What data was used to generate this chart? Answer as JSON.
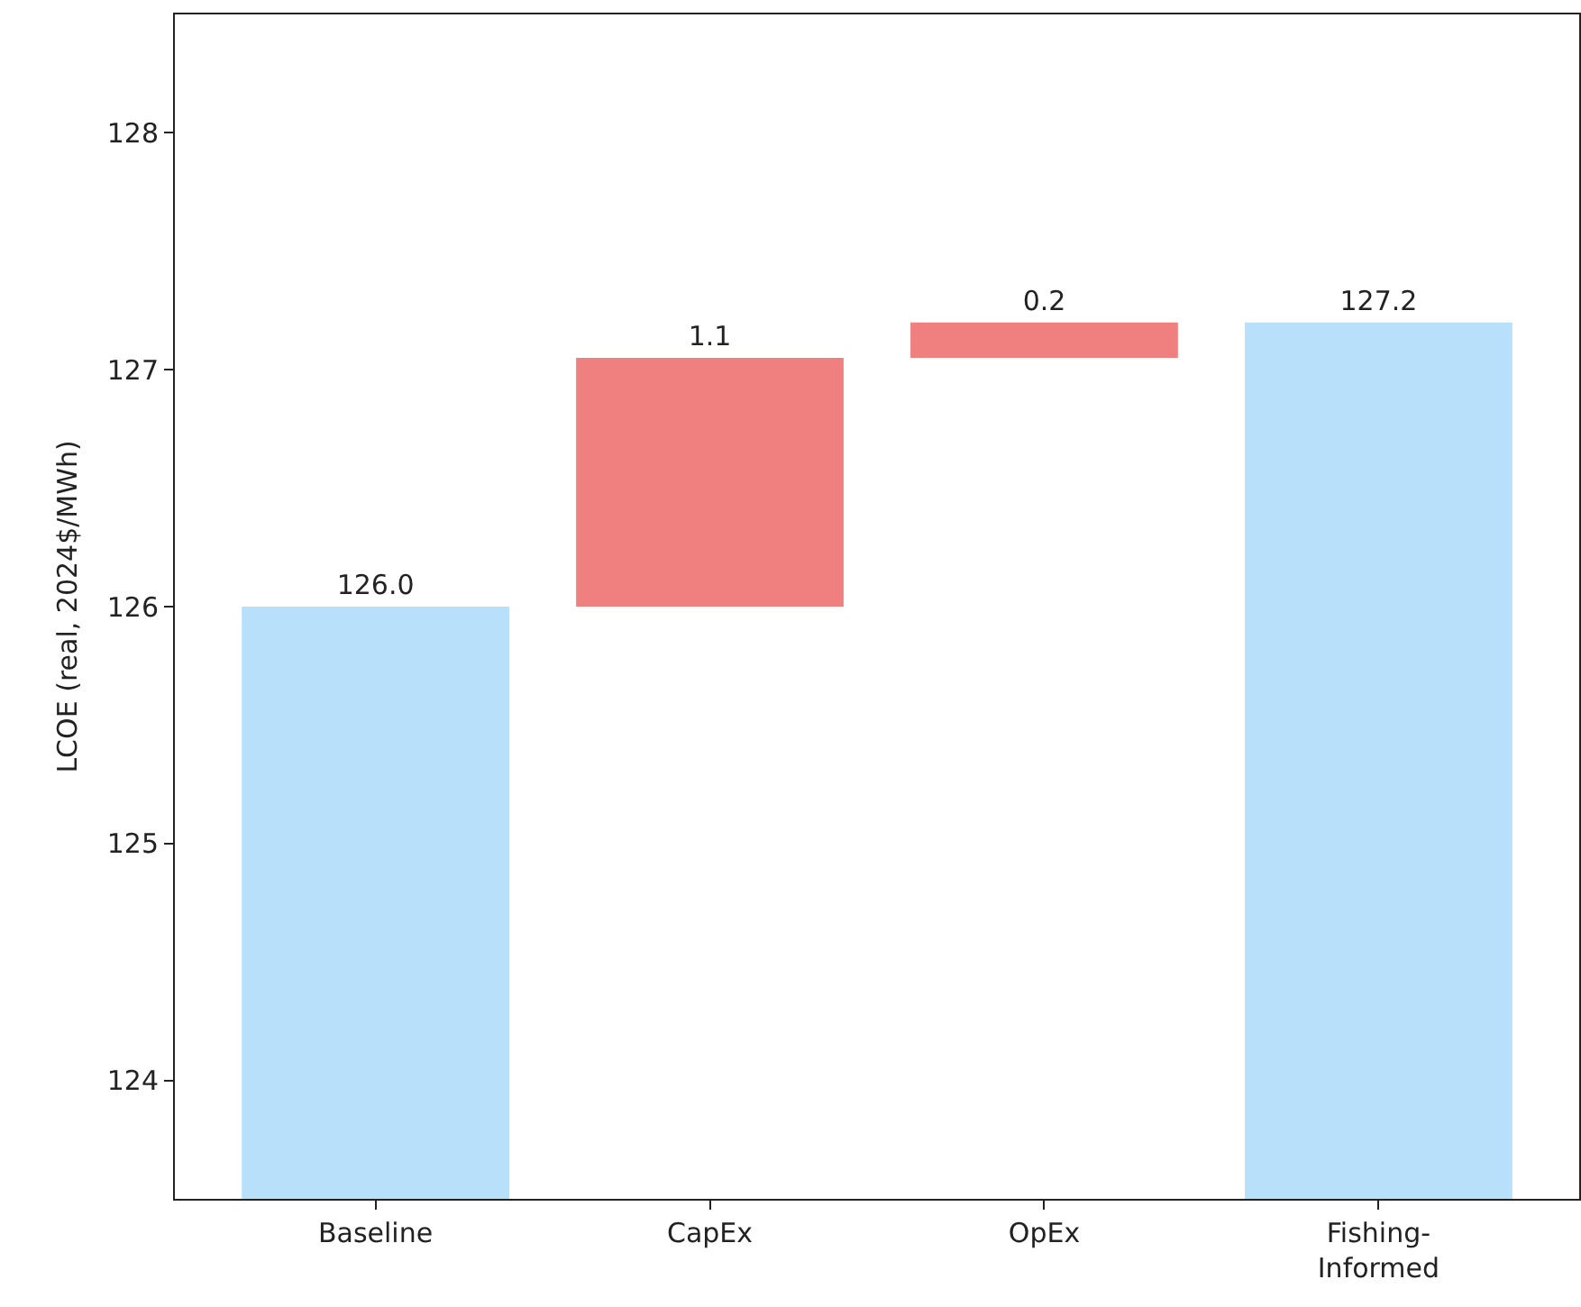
{
  "chart_data": {
    "type": "bar",
    "ylabel": "LCOE (real, 2024$/MWh)",
    "categories": [
      "Baseline",
      "CapEx",
      "OpEx",
      "Fishing-\nInformed"
    ],
    "values": [
      126.0,
      1.05,
      0.15,
      127.2
    ],
    "base": [
      null,
      126.0,
      127.05,
      null
    ],
    "colors": [
      "#b8e0fa",
      "#f08080",
      "#f08080",
      "#b8e0fa"
    ],
    "value_labels": [
      "126.0",
      "1.1",
      "0.2",
      "127.2"
    ],
    "ylim": [
      123.5,
      128.5
    ],
    "yticks": [
      124,
      125,
      126,
      127,
      128
    ]
  }
}
